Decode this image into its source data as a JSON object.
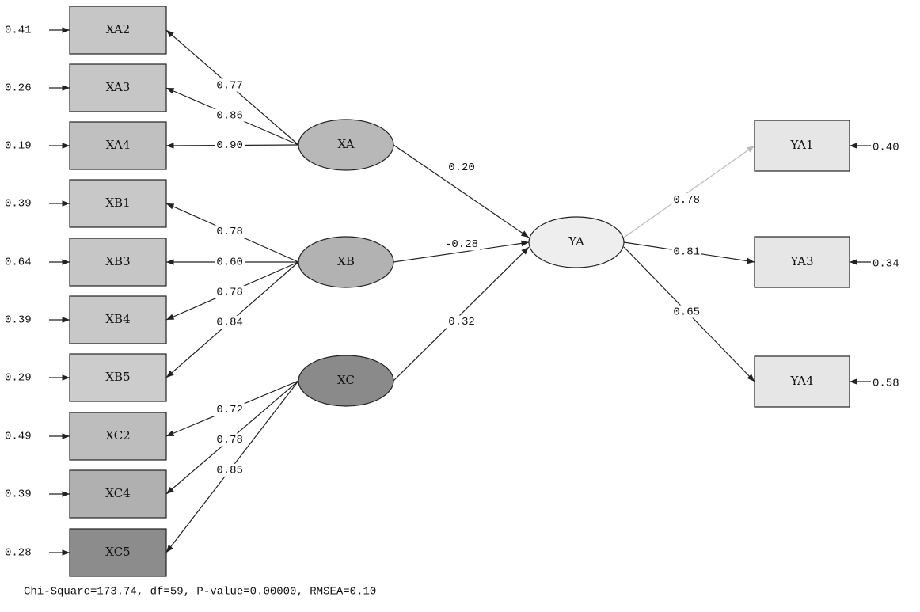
{
  "indicators": [
    {
      "label": "XA2",
      "error": "0.41"
    },
    {
      "label": "XA3",
      "error": "0.26"
    },
    {
      "label": "XA4",
      "error": "0.19"
    },
    {
      "label": "XB1",
      "error": "0.39"
    },
    {
      "label": "XB3",
      "error": "0.64"
    },
    {
      "label": "XB4",
      "error": "0.39"
    },
    {
      "label": "XB5",
      "error": "0.29"
    },
    {
      "label": "XC2",
      "error": "0.49"
    },
    {
      "label": "XC4",
      "error": "0.39"
    },
    {
      "label": "XC5",
      "error": "0.28"
    }
  ],
  "latent": [
    {
      "label": "XA"
    },
    {
      "label": "XB"
    },
    {
      "label": "XC"
    },
    {
      "label": "YA"
    }
  ],
  "outcomes": [
    {
      "label": "YA1",
      "error": "0.40"
    },
    {
      "label": "YA3",
      "error": "0.34"
    },
    {
      "label": "YA4",
      "error": "0.58"
    }
  ],
  "loadings": [
    "0.77",
    "0.86",
    "0.90",
    "0.78",
    "0.60",
    "0.78",
    "0.84",
    "0.72",
    "0.78",
    "0.85"
  ],
  "paths": [
    "0.20",
    "-0.28",
    "0.32"
  ],
  "outcome_loadings": [
    "0.78",
    "0.81",
    "0.65"
  ],
  "fit": "Chi-Square=173.74, df=59, P-value=0.00000, RMSEA=0.10"
}
